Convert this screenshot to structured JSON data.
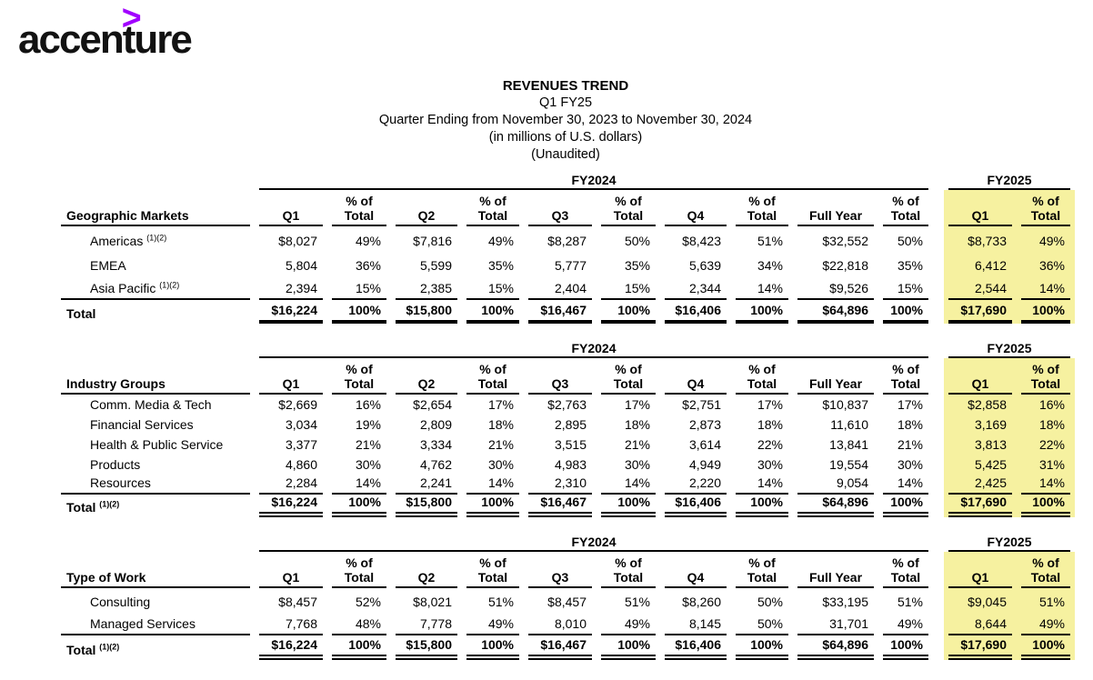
{
  "logo": {
    "text": "accenture",
    "symbol": ">"
  },
  "colors": {
    "accent_purple": "#A100FF",
    "highlight_yellow": "#F6F1A0",
    "text": "#000000"
  },
  "title": {
    "line1": "REVENUES TREND",
    "line2": "Q1 FY25",
    "line3": "Quarter Ending from November 30, 2023 to November 30, 2024",
    "line4": "(in millions of U.S. dollars)",
    "line5": "(Unaudited)"
  },
  "columns": {
    "fy2024_label": "FY2024",
    "fy2025_label": "FY2025",
    "pct_of": "% of",
    "headers": [
      "Q1",
      "Total",
      "Q2",
      "Total",
      "Q3",
      "Total",
      "Q4",
      "Total",
      "Full Year",
      "Total",
      "Q1",
      "Total"
    ]
  },
  "tables": [
    {
      "section_label": "Geographic Markets",
      "total_style": "thick",
      "rows": [
        {
          "label": "Americas",
          "sup": "(1)(2)",
          "values": [
            "$8,027",
            "49%",
            "$7,816",
            "49%",
            "$8,287",
            "50%",
            "$8,423",
            "51%",
            "$32,552",
            "50%",
            "$8,733",
            "49%"
          ]
        },
        {
          "label": "EMEA",
          "sup": "",
          "values": [
            "5,804",
            "36%",
            "5,599",
            "35%",
            "5,777",
            "35%",
            "5,639",
            "34%",
            "$22,818",
            "35%",
            "6,412",
            "36%"
          ]
        },
        {
          "label": "Asia Pacific",
          "sup": "(1)(2)",
          "values": [
            "2,394",
            "15%",
            "2,385",
            "15%",
            "2,404",
            "15%",
            "2,344",
            "14%",
            "$9,526",
            "15%",
            "2,544",
            "14%"
          ]
        }
      ],
      "total": {
        "label": "Total",
        "sup": "",
        "values": [
          "$16,224",
          "100%",
          "$15,800",
          "100%",
          "$16,467",
          "100%",
          "$16,406",
          "100%",
          "$64,896",
          "100%",
          "$17,690",
          "100%"
        ]
      }
    },
    {
      "section_label": "Industry Groups",
      "total_style": "double",
      "rows": [
        {
          "label": "Comm. Media & Tech",
          "sup": "",
          "values": [
            "$2,669",
            "16%",
            "$2,654",
            "17%",
            "$2,763",
            "17%",
            "$2,751",
            "17%",
            "$10,837",
            "17%",
            "$2,858",
            "16%"
          ]
        },
        {
          "label": "Financial Services",
          "sup": "",
          "values": [
            "3,034",
            "19%",
            "2,809",
            "18%",
            "2,895",
            "18%",
            "2,873",
            "18%",
            "11,610",
            "18%",
            "3,169",
            "18%"
          ]
        },
        {
          "label": "Health & Public Service",
          "sup": "",
          "values": [
            "3,377",
            "21%",
            "3,334",
            "21%",
            "3,515",
            "21%",
            "3,614",
            "22%",
            "13,841",
            "21%",
            "3,813",
            "22%"
          ]
        },
        {
          "label": "Products",
          "sup": "",
          "values": [
            "4,860",
            "30%",
            "4,762",
            "30%",
            "4,983",
            "30%",
            "4,949",
            "30%",
            "19,554",
            "30%",
            "5,425",
            "31%"
          ]
        },
        {
          "label": "Resources",
          "sup": "",
          "values": [
            "2,284",
            "14%",
            "2,241",
            "14%",
            "2,310",
            "14%",
            "2,220",
            "14%",
            "9,054",
            "14%",
            "2,425",
            "14%"
          ]
        }
      ],
      "total": {
        "label": "Total",
        "sup": "(1)(2)",
        "values": [
          "$16,224",
          "100%",
          "$15,800",
          "100%",
          "$16,467",
          "100%",
          "$16,406",
          "100%",
          "$64,896",
          "100%",
          "$17,690",
          "100%"
        ]
      }
    },
    {
      "section_label": "Type of Work",
      "total_style": "double",
      "rows": [
        {
          "label": "Consulting",
          "sup": "",
          "values": [
            "$8,457",
            "52%",
            "$8,021",
            "51%",
            "$8,457",
            "51%",
            "$8,260",
            "50%",
            "$33,195",
            "51%",
            "$9,045",
            "51%"
          ]
        },
        {
          "label": "Managed Services",
          "sup": "",
          "values": [
            "7,768",
            "48%",
            "7,778",
            "49%",
            "8,010",
            "49%",
            "8,145",
            "50%",
            "31,701",
            "49%",
            "8,644",
            "49%"
          ]
        }
      ],
      "total": {
        "label": "Total",
        "sup": "(1)(2)",
        "values": [
          "$16,224",
          "100%",
          "$15,800",
          "100%",
          "$16,467",
          "100%",
          "$16,406",
          "100%",
          "$64,896",
          "100%",
          "$17,690",
          "100%"
        ]
      }
    }
  ]
}
